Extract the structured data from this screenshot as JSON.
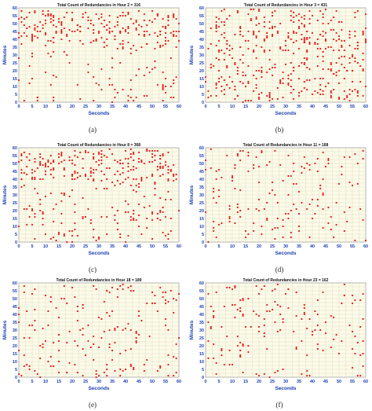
{
  "colors": {
    "plot_bg": "#fdfbe6",
    "grid": "#c9c9c9",
    "point": "#e81a1a",
    "tick_text": "#1a3fb0",
    "frame": "#9a9a9a",
    "title_text": "#111111"
  },
  "chart_data": [
    {
      "type": "scatter",
      "caption": "(a)",
      "title": "Total Count of Redundancies in Hour 2 = 316",
      "xlabel": "Seconds",
      "ylabel": "Minutes",
      "xlim": [
        0,
        60
      ],
      "ylim": [
        0,
        60
      ],
      "xticks": [
        "0",
        "5",
        "10",
        "15",
        "20",
        "25",
        "30",
        "35",
        "40",
        "45",
        "50",
        "55",
        "60"
      ],
      "yticks": [
        "0",
        "5",
        "10",
        "15",
        "20",
        "25",
        "30",
        "35",
        "40",
        "45",
        "50",
        "55",
        "60"
      ],
      "grid": true,
      "count": 316,
      "seed": 2,
      "density": "upper",
      "legend": "none"
    },
    {
      "type": "scatter",
      "caption": "(b)",
      "title": "Total Count of Redundancies in Hour 3 = 431",
      "xlabel": "Seconds",
      "ylabel": "Minutes",
      "xlim": [
        0,
        60
      ],
      "ylim": [
        0,
        60
      ],
      "xticks": [
        "0",
        "5",
        "10",
        "15",
        "20",
        "25",
        "30",
        "35",
        "40",
        "45",
        "50",
        "55",
        "60"
      ],
      "yticks": [
        "0",
        "5",
        "10",
        "15",
        "20",
        "25",
        "30",
        "35",
        "40",
        "45",
        "50",
        "55",
        "60"
      ],
      "grid": true,
      "count": 431,
      "seed": 3,
      "density": "uniform",
      "legend": "none"
    },
    {
      "type": "scatter",
      "caption": "(c)",
      "title": "Total Count of Redundancies in Hour 8 = 368",
      "xlabel": "Seconds",
      "ylabel": "Minutes",
      "xlim": [
        0,
        60
      ],
      "ylim": [
        0,
        60
      ],
      "xticks": [
        "0",
        "5",
        "10",
        "15",
        "20",
        "25",
        "30",
        "35",
        "40",
        "45",
        "50",
        "55",
        "60"
      ],
      "yticks": [
        "0",
        "5",
        "10",
        "15",
        "20",
        "25",
        "30",
        "35",
        "40",
        "45",
        "50",
        "55",
        "60"
      ],
      "grid": true,
      "count": 368,
      "seed": 8,
      "density": "upper",
      "legend": "none"
    },
    {
      "type": "scatter",
      "caption": "(d)",
      "title": "Total Count of Redundancies in Hour 11 = 168",
      "xlabel": "Seconds",
      "ylabel": "Minutes",
      "xlim": [
        0,
        60
      ],
      "ylim": [
        0,
        60
      ],
      "xticks": [
        "0",
        "5",
        "10",
        "15",
        "20",
        "25",
        "30",
        "35",
        "40",
        "45",
        "50",
        "55",
        "60"
      ],
      "yticks": [
        "0",
        "5",
        "10",
        "15",
        "20",
        "25",
        "30",
        "35",
        "40",
        "45",
        "50",
        "55",
        "60"
      ],
      "grid": true,
      "count": 168,
      "seed": 11,
      "density": "uniform",
      "legend": "none"
    },
    {
      "type": "scatter",
      "caption": "(e)",
      "title": "Total Count of Redundancies in Hour 18 = 189",
      "xlabel": "Seconds",
      "ylabel": "Minutes",
      "xlim": [
        0,
        60
      ],
      "ylim": [
        0,
        60
      ],
      "xticks": [
        "0",
        "5",
        "10",
        "15",
        "20",
        "25",
        "30",
        "35",
        "40",
        "45",
        "50",
        "55",
        "60"
      ],
      "yticks": [
        "0",
        "5",
        "10",
        "15",
        "20",
        "25",
        "30",
        "35",
        "40",
        "45",
        "50",
        "55",
        "60"
      ],
      "grid": true,
      "count": 189,
      "seed": 18,
      "density": "uniform",
      "legend": "none"
    },
    {
      "type": "scatter",
      "caption": "(f)",
      "title": "Total Count of Redundancies in Hour 23 = 162",
      "xlabel": "Seconds",
      "ylabel": "Minutes",
      "xlim": [
        0,
        60
      ],
      "ylim": [
        0,
        60
      ],
      "xticks": [
        "0",
        "5",
        "10",
        "15",
        "20",
        "25",
        "30",
        "35",
        "40",
        "45",
        "50",
        "55",
        "60"
      ],
      "yticks": [
        "0",
        "5",
        "10",
        "15",
        "20",
        "25",
        "30",
        "35",
        "40",
        "45",
        "50",
        "55",
        "60"
      ],
      "grid": true,
      "count": 162,
      "seed": 23,
      "density": "uniform",
      "legend": "none"
    }
  ]
}
